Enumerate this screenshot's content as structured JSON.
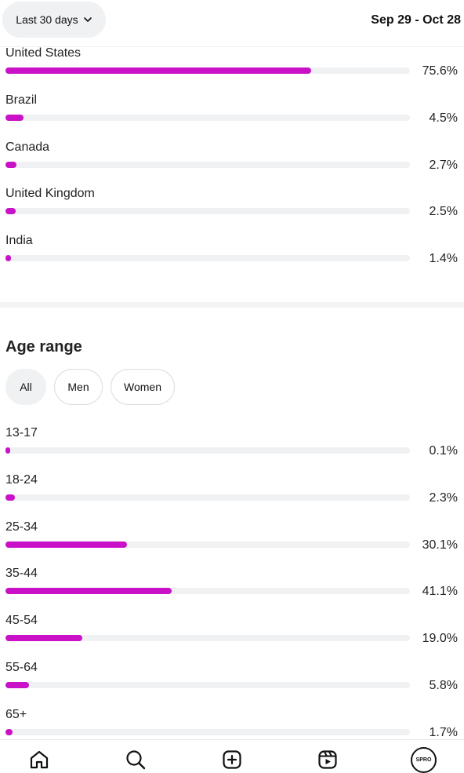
{
  "header": {
    "range_label": "Last 30 days",
    "date_range": "Sep 29 - Oct 28"
  },
  "countries": [
    {
      "name": "United States",
      "value": 75.6,
      "label": "75.6%"
    },
    {
      "name": "Brazil",
      "value": 4.5,
      "label": "4.5%"
    },
    {
      "name": "Canada",
      "value": 2.7,
      "label": "2.7%"
    },
    {
      "name": "United Kingdom",
      "value": 2.5,
      "label": "2.5%"
    },
    {
      "name": "India",
      "value": 1.4,
      "label": "1.4%"
    }
  ],
  "age_section": {
    "title": "Age range",
    "filters": {
      "all": "All",
      "men": "Men",
      "women": "Women"
    },
    "selected_filter": "All"
  },
  "ages": [
    {
      "name": "13-17",
      "value": 0.1,
      "label": "0.1%"
    },
    {
      "name": "18-24",
      "value": 2.3,
      "label": "2.3%"
    },
    {
      "name": "25-34",
      "value": 30.1,
      "label": "30.1%"
    },
    {
      "name": "35-44",
      "value": 41.1,
      "label": "41.1%"
    },
    {
      "name": "45-54",
      "value": 19.0,
      "label": "19.0%"
    },
    {
      "name": "55-64",
      "value": 5.8,
      "label": "5.8%"
    },
    {
      "name": "65+",
      "value": 1.7,
      "label": "1.7%"
    }
  ],
  "bottom_nav": {
    "icons": [
      "home-icon",
      "search-icon",
      "create-icon",
      "reels-icon",
      "profile-avatar"
    ],
    "avatar_text": "SPRO"
  },
  "colors": {
    "bar_fill": "#c912c8",
    "track": "#eff1f3"
  }
}
